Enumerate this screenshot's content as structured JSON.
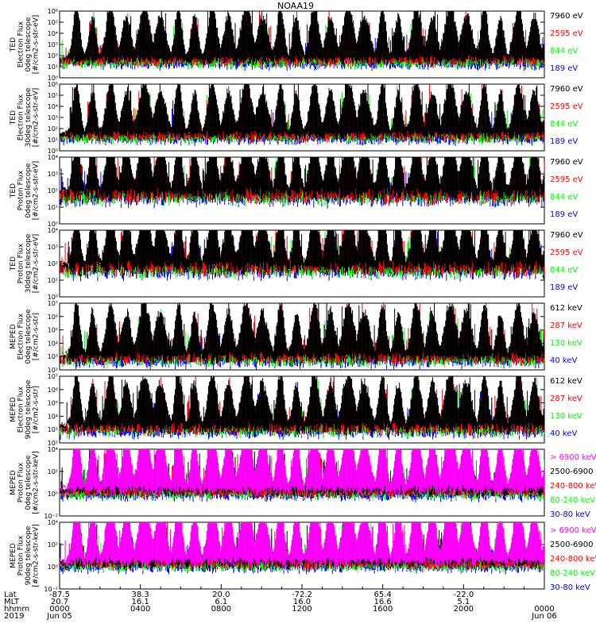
{
  "title": "NOAA19",
  "colors": {
    "black": "#000000",
    "red": "#ff0000",
    "green": "#00ff00",
    "blue": "#0000ff",
    "magenta": "#ff00ff"
  },
  "chart_data": [
    {
      "type": "line",
      "ylabel": [
        "TED",
        "Electron Flux",
        "0deg telescope",
        "[#/cm2-s-str-eV]"
      ],
      "yscale": "log",
      "ylim_exp": [
        0,
        6
      ],
      "ticks": [
        "10⁰",
        "10¹",
        "10²",
        "10³",
        "10⁴",
        "10⁵",
        "10⁶"
      ],
      "series": [
        {
          "name": "7960 eV",
          "color": "#000000"
        },
        {
          "name": "2595 eV",
          "color": "#ff0000"
        },
        {
          "name": "844 eV",
          "color": "#00ff00"
        },
        {
          "name": "189 eV",
          "color": "#0000ff"
        }
      ],
      "render_order": [
        3,
        2,
        1,
        0
      ],
      "base_exp": 1.2
    },
    {
      "type": "line",
      "ylabel": [
        "TED",
        "Electron Flux",
        "30deg telescope",
        "[#/cm2-s-str-eV]"
      ],
      "yscale": "log",
      "ylim_exp": [
        0,
        6
      ],
      "ticks": [
        "10⁰",
        "10¹",
        "10²",
        "10³",
        "10⁴",
        "10⁵",
        "10⁶"
      ],
      "series": [
        {
          "name": "7960 eV",
          "color": "#000000"
        },
        {
          "name": "2595 eV",
          "color": "#ff0000"
        },
        {
          "name": "844 eV",
          "color": "#00ff00"
        },
        {
          "name": "189 eV",
          "color": "#0000ff"
        }
      ],
      "render_order": [
        3,
        2,
        1,
        0
      ],
      "base_exp": 1.0
    },
    {
      "type": "line",
      "ylabel": [
        "TED",
        "Proton Flux",
        "0deg telescope",
        "[#/cm2-s-str-eV]"
      ],
      "yscale": "log",
      "ylim_exp": [
        0,
        4
      ],
      "ticks": [
        "10⁰",
        "10¹",
        "10²",
        "10³",
        "10⁴"
      ],
      "series": [
        {
          "name": "7960 eV",
          "color": "#000000"
        },
        {
          "name": "2595 eV",
          "color": "#ff0000"
        },
        {
          "name": "844 eV",
          "color": "#00ff00"
        },
        {
          "name": "189 eV",
          "color": "#0000ff"
        }
      ],
      "render_order": [
        3,
        2,
        1,
        0
      ],
      "base_exp": 1.5
    },
    {
      "type": "line",
      "ylabel": [
        "TED",
        "Proton Flux",
        "30deg telescope",
        "[#/cm2-s-str-eV]"
      ],
      "yscale": "log",
      "ylim_exp": [
        0,
        4
      ],
      "ticks": [
        "10⁰",
        "10¹",
        "10²",
        "10³",
        "10⁴"
      ],
      "series": [
        {
          "name": "7960 eV",
          "color": "#000000"
        },
        {
          "name": "2595 eV",
          "color": "#ff0000"
        },
        {
          "name": "844 eV",
          "color": "#00ff00"
        },
        {
          "name": "189 eV",
          "color": "#0000ff"
        }
      ],
      "render_order": [
        3,
        2,
        1,
        0
      ],
      "base_exp": 1.5
    },
    {
      "type": "line",
      "ylabel": [
        "MEPED",
        "Electron Flux",
        "0deg telescope",
        "[#/cm2-s-str]"
      ],
      "yscale": "log",
      "ylim_exp": [
        2,
        7
      ],
      "ticks": [
        "10²",
        "10³",
        "10⁴",
        "10⁵",
        "10⁶",
        "10⁷"
      ],
      "series": [
        {
          "name": "612 keV",
          "color": "#000000"
        },
        {
          "name": "287 keV",
          "color": "#ff0000"
        },
        {
          "name": "130 keV",
          "color": "#00ff00"
        },
        {
          "name": "40 keV",
          "color": "#0000ff"
        }
      ],
      "render_order": [
        3,
        2,
        1,
        0
      ],
      "base_exp": 2.6
    },
    {
      "type": "line",
      "ylabel": [
        "MEPED",
        "Electron Flux",
        "90deg telescope",
        "[#/cm2-s-str]"
      ],
      "yscale": "log",
      "ylim_exp": [
        2,
        7
      ],
      "ticks": [
        "10²",
        "10³",
        "10⁴",
        "10⁵",
        "10⁶",
        "10⁷"
      ],
      "series": [
        {
          "name": "612 keV",
          "color": "#000000"
        },
        {
          "name": "287 keV",
          "color": "#ff0000"
        },
        {
          "name": "130 keV",
          "color": "#00ff00"
        },
        {
          "name": "40 keV",
          "color": "#0000ff"
        }
      ],
      "render_order": [
        3,
        2,
        1,
        0
      ],
      "base_exp": 2.8
    },
    {
      "type": "line",
      "ylabel": [
        "MEPED",
        "Proton Flux",
        "0deg telescope",
        "[#/cm2-s-str-keV]"
      ],
      "yscale": "log",
      "ylim_exp": [
        -2,
        4
      ],
      "ticks": [
        "10⁻²",
        "10⁰",
        "10²",
        "10⁴"
      ],
      "series": [
        {
          "name": "> 6900 keV",
          "color": "#ff00ff"
        },
        {
          "name": "2500-6900",
          "color": "#000000"
        },
        {
          "name": "240-800 keV",
          "color": "#ff0000"
        },
        {
          "name": "80-240 keV",
          "color": "#00ff00"
        },
        {
          "name": "30-80 keV",
          "color": "#0000ff"
        }
      ],
      "render_order": [
        4,
        3,
        2,
        1,
        0
      ],
      "base_exp": -0.2
    },
    {
      "type": "line",
      "ylabel": [
        "MEPED",
        "Proton Flux",
        "90deg telescope",
        "[#/cm2-s-str-keV]"
      ],
      "yscale": "log",
      "ylim_exp": [
        -2,
        4
      ],
      "ticks": [
        "10⁻²",
        "10⁰",
        "10²",
        "10⁴"
      ],
      "series": [
        {
          "name": "> 6900 keV",
          "color": "#ff00ff"
        },
        {
          "name": "2500-6900",
          "color": "#000000"
        },
        {
          "name": "240-800 keV",
          "color": "#ff0000"
        },
        {
          "name": "80-240 keV",
          "color": "#00ff00"
        },
        {
          "name": "30-80 keV",
          "color": "#0000ff"
        }
      ],
      "render_order": [
        4,
        3,
        2,
        1,
        0
      ],
      "base_exp": -0.1
    }
  ],
  "footer": {
    "row_labels": [
      "Lat",
      "MLT",
      "hhmm",
      "2019"
    ],
    "columns": [
      {
        "lat": "-87.5",
        "mlt": "20.7",
        "hhmm": "0000",
        "date": "Jun 05"
      },
      {
        "lat": "38.3",
        "mlt": "16.1",
        "hhmm": "0400",
        "date": ""
      },
      {
        "lat": "20.0",
        "mlt": "6.1",
        "hhmm": "0800",
        "date": ""
      },
      {
        "lat": "-72.2",
        "mlt": "16.0",
        "hhmm": "1200",
        "date": ""
      },
      {
        "lat": "65.4",
        "mlt": "16.6",
        "hhmm": "1600",
        "date": ""
      },
      {
        "lat": "-22.0",
        "mlt": "5.1",
        "hhmm": "2000",
        "date": ""
      },
      {
        "lat": "",
        "mlt": "",
        "hhmm": "0000",
        "date": "Jun 06"
      }
    ]
  }
}
